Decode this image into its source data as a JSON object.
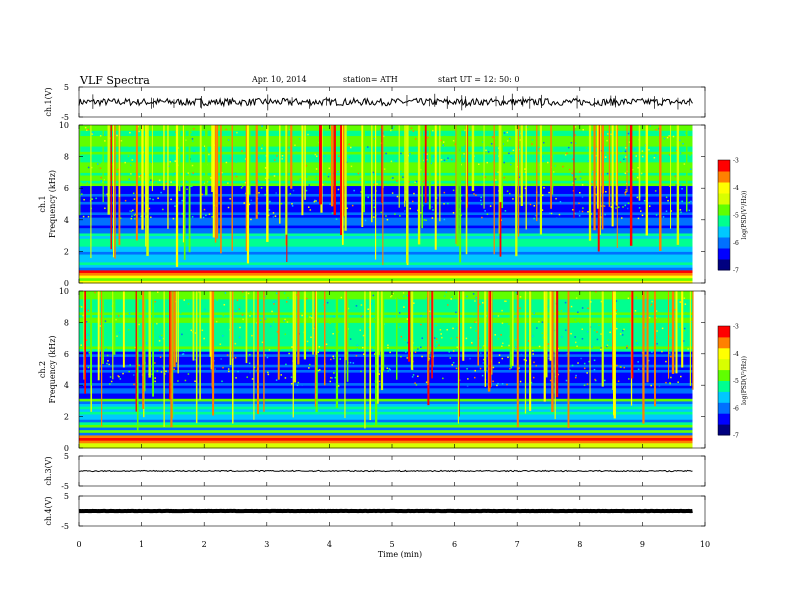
{
  "header": {
    "title": "VLF  Spectra",
    "date": "Apr. 10,  2014",
    "station": "station= ATH",
    "start": "start  UT  =   12: 50: 0"
  },
  "chart_data": [
    {
      "type": "line",
      "panel": "ch1-waveform",
      "ylabel": "ch.1(V)",
      "ylim": [
        -5,
        5
      ],
      "yticks": [
        "5",
        "-5"
      ],
      "x": [
        0,
        0.5,
        1,
        1.5,
        2,
        2.5,
        3,
        3.5,
        4,
        4.5,
        5,
        5.5,
        6,
        6.5,
        7,
        7.5,
        8,
        8.5,
        9,
        9.5,
        9.8
      ],
      "y": [
        0,
        0.2,
        0,
        -0.2,
        0.1,
        0,
        0.4,
        0.1,
        0,
        0.2,
        0,
        0.1,
        -0.1,
        0.2,
        0,
        0.1,
        0,
        0.2,
        0.1,
        0,
        0
      ]
    },
    {
      "type": "heatmap",
      "panel": "ch1-spectrogram",
      "ylabel": "ch.1\nFrequency (kHz)",
      "ylim": [
        0,
        10
      ],
      "yticks": [
        "0",
        "2",
        "4",
        "6",
        "8",
        "10"
      ],
      "xlim": [
        0,
        10
      ],
      "colorbar": {
        "label": "log(PSD(V²/Hz))",
        "range": [
          -7,
          -3
        ],
        "ticks": [
          "-3",
          "-4",
          "-5",
          "-6",
          "-7"
        ]
      }
    },
    {
      "type": "heatmap",
      "panel": "ch2-spectrogram",
      "ylabel": "ch.2\nFrequency (kHz)",
      "ylim": [
        0,
        10
      ],
      "yticks": [
        "0",
        "2",
        "4",
        "6",
        "8",
        "10"
      ],
      "xlim": [
        0,
        10
      ],
      "colorbar": {
        "label": "log(PSD(V²/Hz))",
        "range": [
          -7,
          -3
        ],
        "ticks": [
          "-3",
          "-4",
          "-5",
          "-6",
          "-7"
        ]
      }
    },
    {
      "type": "line",
      "panel": "ch3-waveform",
      "ylabel": "ch.3(V)",
      "ylim": [
        -5,
        5
      ],
      "yticks": [
        "5",
        "-5"
      ],
      "x": [
        0,
        9.8
      ],
      "y": [
        0,
        0
      ]
    },
    {
      "type": "line",
      "panel": "ch4-waveform",
      "ylabel": "ch.4(V)",
      "ylim": [
        -5,
        5
      ],
      "yticks": [
        "5",
        "-5"
      ],
      "x": [
        0,
        9.8
      ],
      "y": [
        0,
        0
      ]
    }
  ],
  "x_axis": {
    "label": "Time  (min)",
    "ticks": [
      "0",
      "1",
      "2",
      "3",
      "4",
      "5",
      "6",
      "7",
      "8",
      "9",
      "10"
    ]
  },
  "colors": {
    "scale": [
      "#000080",
      "#0000ff",
      "#0070ff",
      "#00c8ff",
      "#00ff90",
      "#60ff00",
      "#d8ff00",
      "#ffff00",
      "#ff8000",
      "#ff0000",
      "#ffffff"
    ]
  }
}
